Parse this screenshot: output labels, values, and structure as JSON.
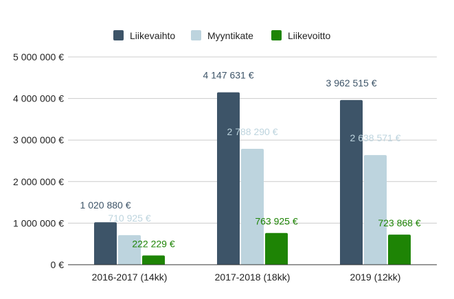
{
  "chart_data": {
    "type": "bar",
    "title": "",
    "xlabel": "",
    "ylabel": "",
    "categories": [
      "2016-2017 (14kk)",
      "2017-2018 (18kk)",
      "2019 (12kk)"
    ],
    "series": [
      {
        "name": "Liikevaihto",
        "color": "#3d5468",
        "values": [
          1020880,
          4147631,
          3962515
        ],
        "labels": [
          "1 020 880 €",
          "4 147 631 €",
          "3 962 515 €"
        ]
      },
      {
        "name": "Myyntikate",
        "color": "#bdd4de",
        "values": [
          710925,
          2788290,
          2638571
        ],
        "labels": [
          "710 925 €",
          "2 788 290 €",
          "2 638 571 €"
        ]
      },
      {
        "name": "Liikevoitto",
        "color": "#1e8405",
        "values": [
          222229,
          763925,
          723868
        ],
        "labels": [
          "222 229 €",
          "763 925 €",
          "723 868 €"
        ]
      }
    ],
    "ylim": [
      0,
      5000000
    ],
    "yticks": [
      0,
      1000000,
      2000000,
      3000000,
      4000000,
      5000000
    ],
    "ytick_labels": [
      "0 €",
      "1 000 000 €",
      "2 000 000 €",
      "3 000 000 €",
      "4 000 000 €",
      "5 000 000 €"
    ],
    "grid": true,
    "legend_position": "top"
  }
}
